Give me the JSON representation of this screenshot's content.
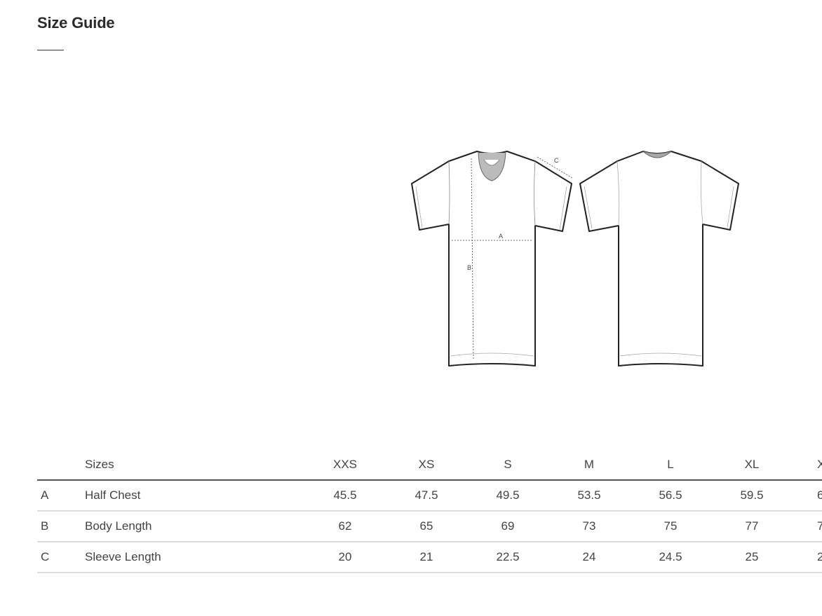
{
  "title": "Size Guide",
  "diagram": {
    "labels": {
      "a": "A",
      "b": "B",
      "c": "C"
    }
  },
  "table": {
    "header": {
      "key": "",
      "name": "Sizes",
      "sizes": [
        "XXS",
        "XS",
        "S",
        "M",
        "L",
        "XL",
        "X"
      ]
    },
    "rows": [
      {
        "key": "A",
        "name": "Half Chest",
        "values": [
          "45.5",
          "47.5",
          "49.5",
          "53.5",
          "56.5",
          "59.5",
          "6"
        ]
      },
      {
        "key": "B",
        "name": "Body Length",
        "values": [
          "62",
          "65",
          "69",
          "73",
          "75",
          "77",
          "7"
        ]
      },
      {
        "key": "C",
        "name": "Sleeve Length",
        "values": [
          "20",
          "21",
          "22.5",
          "24",
          "24.5",
          "25",
          "2"
        ]
      }
    ]
  }
}
